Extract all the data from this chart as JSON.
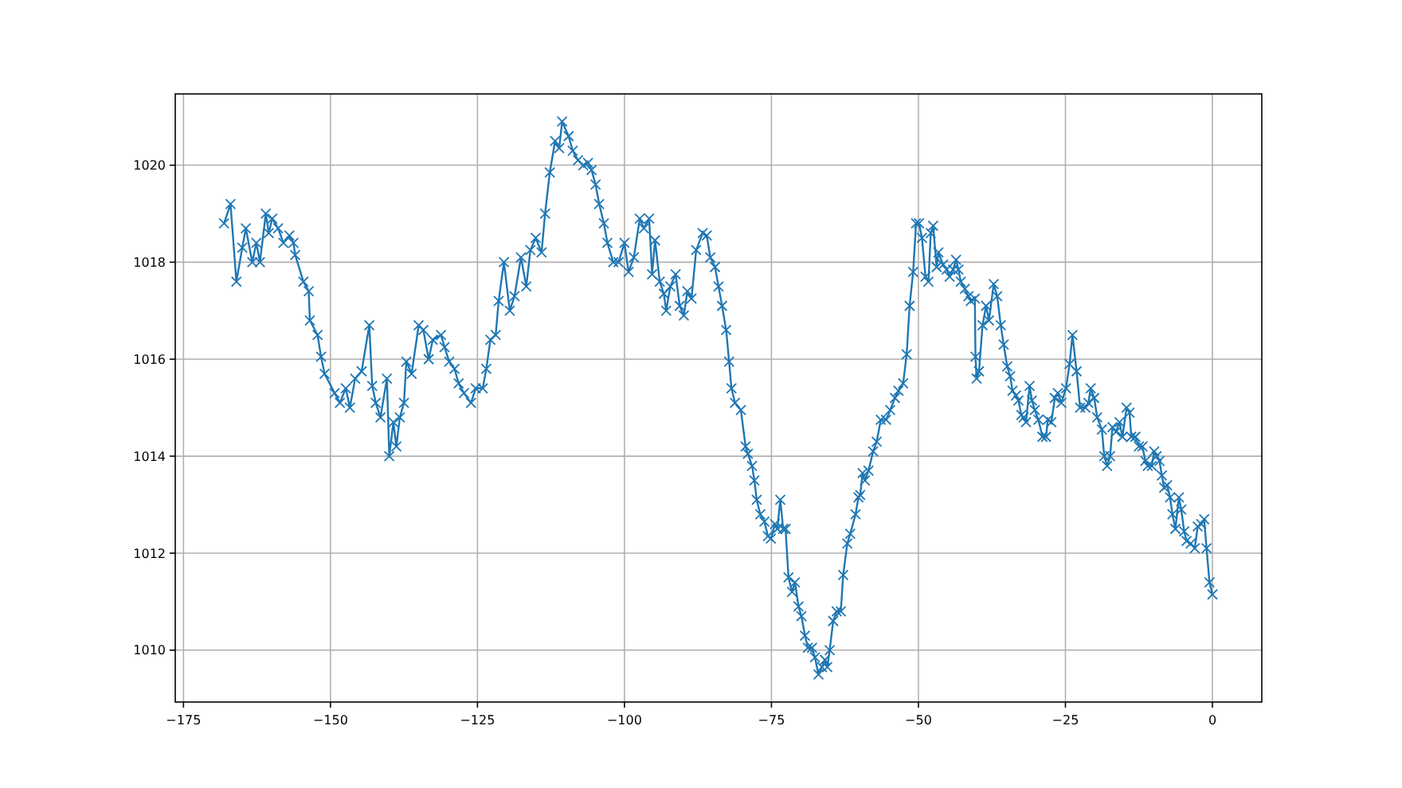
{
  "chart_data": {
    "type": "line",
    "marker": "cross",
    "line_style": "solid",
    "grid": true,
    "xlim": [
      -176.4,
      8.4
    ],
    "ylim": [
      1008.93,
      1021.47
    ],
    "xticks": [
      -175,
      -150,
      -125,
      -100,
      -75,
      -50,
      -25,
      0
    ],
    "yticks": [
      1010,
      1012,
      1014,
      1016,
      1018,
      1020
    ],
    "series": [
      {
        "color": "#1f77b4",
        "x": [
          -168.1,
          -167,
          -166,
          -165,
          -164.4,
          -163.3,
          -162.6,
          -162,
          -161,
          -160.5,
          -159.9,
          -158.9,
          -158,
          -157,
          -156.3,
          -156,
          -154.6,
          -153.7,
          -153.5,
          -152.2,
          -151.6,
          -151,
          -149.3,
          -148.4,
          -147.4,
          -146.7,
          -145.8,
          -144.7,
          -143.4,
          -142.9,
          -142.3,
          -141.5,
          -140.4,
          -140,
          -139.3,
          -138.8,
          -138.2,
          -137.5,
          -137.1,
          -136.2,
          -135,
          -134.2,
          -133.3,
          -132.6,
          -131.2,
          -130.6,
          -129.8,
          -128.9,
          -128.2,
          -127.3,
          -126.1,
          -125.3,
          -124.1,
          -123.5,
          -122.8,
          -121.9,
          -121.4,
          -120.5,
          -119.5,
          -118.7,
          -117.6,
          -116.7,
          -116,
          -115.1,
          -114.1,
          -113.5,
          -112.7,
          -111.8,
          -111.1,
          -110.6,
          -109.5,
          -108.8,
          -107.9,
          -107,
          -106.2,
          -105.6,
          -104.9,
          -104.3,
          -103.5,
          -102.9,
          -101.9,
          -101,
          -100,
          -99.3,
          -98.4,
          -97.4,
          -96.7,
          -95.8,
          -95.3,
          -94.8,
          -94,
          -93.3,
          -92.9,
          -92.2,
          -91.3,
          -90.6,
          -89.9,
          -89.3,
          -88.6,
          -87.8,
          -86.7,
          -86,
          -85.4,
          -84.6,
          -84,
          -83.4,
          -82.7,
          -82.2,
          -81.8,
          -81.2,
          -80.2,
          -79.4,
          -79,
          -78.3,
          -77.9,
          -77.5,
          -76.9,
          -76.2,
          -75.6,
          -75.1,
          -74.4,
          -74,
          -73.5,
          -73,
          -72.6,
          -72.1,
          -71.5,
          -71,
          -70.4,
          -69.9,
          -69.3,
          -68.8,
          -68.1,
          -67.6,
          -67,
          -66.4,
          -65.9,
          -65.5,
          -65.1,
          -64.5,
          -63.9,
          -63.2,
          -62.8,
          -62.1,
          -61.6,
          -60.7,
          -60.2,
          -59.9,
          -59.5,
          -59.1,
          -58.5,
          -57.7,
          -57.1,
          -56.4,
          -55.5,
          -54.8,
          -54,
          -53.4,
          -52.6,
          -52,
          -51.5,
          -50.9,
          -50.4,
          -49.9,
          -49.4,
          -48.8,
          -48.3,
          -47.9,
          -47.5,
          -46.9,
          -46.6,
          -45.8,
          -45.2,
          -44.7,
          -44.1,
          -43.6,
          -43.2,
          -42.8,
          -42.1,
          -41.5,
          -41.1,
          -40.4,
          -40.3,
          -40.1,
          -39.7,
          -39.1,
          -38.5,
          -38,
          -37.2,
          -36.6,
          -36,
          -35.5,
          -34.9,
          -34.4,
          -34,
          -33.4,
          -33,
          -32.5,
          -32.1,
          -31.7,
          -31.1,
          -30.7,
          -30.2,
          -29.6,
          -28.9,
          -28.3,
          -28,
          -27.4,
          -26.8,
          -26.3,
          -25.7,
          -24.9,
          -24.3,
          -23.8,
          -23.1,
          -22.5,
          -21.6,
          -21.1,
          -20.7,
          -20.1,
          -19.6,
          -18.8,
          -18.4,
          -17.9,
          -17.4,
          -17,
          -16.4,
          -15.8,
          -15.3,
          -14.6,
          -14.1,
          -13.8,
          -13.1,
          -12.5,
          -11.9,
          -11.4,
          -11,
          -10.3,
          -9.9,
          -9.5,
          -9,
          -8.6,
          -8.2,
          -7.7,
          -7.2,
          -6.8,
          -6.3,
          -5.7,
          -5.3,
          -4.8,
          -4.4,
          -3.7,
          -3,
          -2.5,
          -1.9,
          -1.4,
          -1,
          -0.5,
          0
        ],
        "values": [
          1018.8,
          1019.2,
          1017.6,
          1018.3,
          1018.7,
          1018,
          1018.4,
          1018,
          1019,
          1018.6,
          1018.9,
          1018.7,
          1018.4,
          1018.55,
          1018.4,
          1018.15,
          1017.6,
          1017.4,
          1016.8,
          1016.5,
          1016.05,
          1015.7,
          1015.3,
          1015.1,
          1015.4,
          1015,
          1015.6,
          1015.75,
          1016.7,
          1015.45,
          1015.1,
          1014.8,
          1015.6,
          1014,
          1014.7,
          1014.2,
          1014.8,
          1015.1,
          1015.95,
          1015.7,
          1016.7,
          1016.6,
          1016,
          1016.4,
          1016.5,
          1016.25,
          1015.95,
          1015.8,
          1015.5,
          1015.3,
          1015.1,
          1015.4,
          1015.4,
          1015.8,
          1016.4,
          1016.5,
          1017.2,
          1018,
          1017,
          1017.3,
          1018.1,
          1017.5,
          1018.25,
          1018.5,
          1018.2,
          1019,
          1019.85,
          1020.5,
          1020.35,
          1020.9,
          1020.6,
          1020.3,
          1020.1,
          1020,
          1020.05,
          1019.9,
          1019.6,
          1019.2,
          1018.8,
          1018.4,
          1018,
          1018,
          1018.4,
          1017.8,
          1018.1,
          1018.9,
          1018.7,
          1018.9,
          1017.75,
          1018.45,
          1017.6,
          1017.35,
          1017,
          1017.5,
          1017.75,
          1017.1,
          1016.9,
          1017.4,
          1017.25,
          1018.25,
          1018.6,
          1018.55,
          1018.1,
          1017.9,
          1017.5,
          1017.1,
          1016.6,
          1015.95,
          1015.4,
          1015.1,
          1014.95,
          1014.2,
          1014.05,
          1013.8,
          1013.5,
          1013.1,
          1012.8,
          1012.65,
          1012.35,
          1012.3,
          1012.6,
          1012.5,
          1013.1,
          1012.5,
          1012.5,
          1011.5,
          1011.2,
          1011.4,
          1010.9,
          1010.7,
          1010.3,
          1010.05,
          1010.05,
          1009.85,
          1009.5,
          1009.65,
          1009.8,
          1009.65,
          1010,
          1010.6,
          1010.8,
          1010.8,
          1011.55,
          1012.2,
          1012.4,
          1012.8,
          1013.15,
          1013.2,
          1013.65,
          1013.5,
          1013.7,
          1014.1,
          1014.3,
          1014.75,
          1014.75,
          1014.95,
          1015.2,
          1015.35,
          1015.5,
          1016.1,
          1017.1,
          1017.8,
          1018.8,
          1018.8,
          1018.5,
          1017.7,
          1017.6,
          1018.6,
          1018.75,
          1017.9,
          1018.2,
          1017.95,
          1017.85,
          1017.7,
          1017.85,
          1018.05,
          1017.85,
          1017.6,
          1017.45,
          1017.3,
          1017.2,
          1017.25,
          1016.05,
          1015.6,
          1015.75,
          1016.7,
          1017.1,
          1016.8,
          1017.55,
          1017.3,
          1016.7,
          1016.3,
          1015.85,
          1015.65,
          1015.35,
          1015.25,
          1015.15,
          1014.85,
          1014.8,
          1014.7,
          1015.45,
          1015.15,
          1014.95,
          1014.75,
          1014.4,
          1014.4,
          1014.75,
          1014.7,
          1015.2,
          1015.3,
          1015.1,
          1015.4,
          1015.9,
          1016.5,
          1015.75,
          1015,
          1015,
          1015.1,
          1015.4,
          1015.2,
          1014.8,
          1014.55,
          1014,
          1013.8,
          1014,
          1014.6,
          1014.5,
          1014.7,
          1014.4,
          1015,
          1014.9,
          1014.4,
          1014.4,
          1014.2,
          1014.2,
          1013.9,
          1013.8,
          1013.8,
          1014.1,
          1014,
          1013.9,
          1013.6,
          1013.35,
          1013.4,
          1013.15,
          1012.8,
          1012.5,
          1013.15,
          1012.9,
          1012.45,
          1012.25,
          1012.2,
          1012.1,
          1012.55,
          1012.6,
          1012.7,
          1012.1,
          1011.4,
          1011.15
        ]
      }
    ]
  }
}
